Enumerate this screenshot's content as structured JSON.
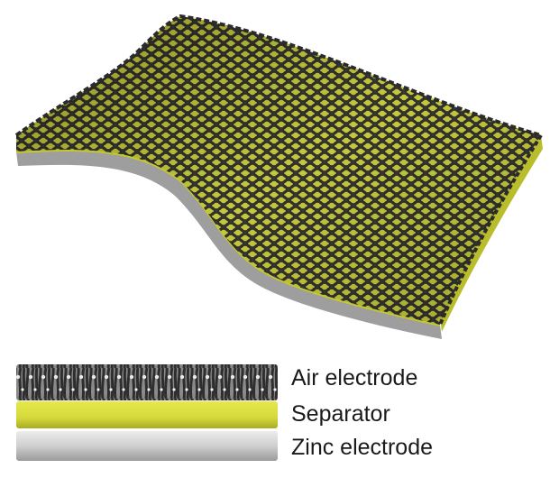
{
  "legend": {
    "items": [
      {
        "label": "Air electrode",
        "color": "#3c3c3c"
      },
      {
        "label": "Separator",
        "color": "#d9dc3a"
      },
      {
        "label": "Zinc electrode",
        "color": "#c8c8c8"
      }
    ]
  },
  "colors": {
    "mesh": "#3a3a3a",
    "mesh_highlight": "#6a6a6a",
    "separator": "#cfd23a",
    "separator_dark": "#8e9a1e",
    "zinc": "#b5b5b5",
    "zinc_dark": "#8a8a8a"
  }
}
